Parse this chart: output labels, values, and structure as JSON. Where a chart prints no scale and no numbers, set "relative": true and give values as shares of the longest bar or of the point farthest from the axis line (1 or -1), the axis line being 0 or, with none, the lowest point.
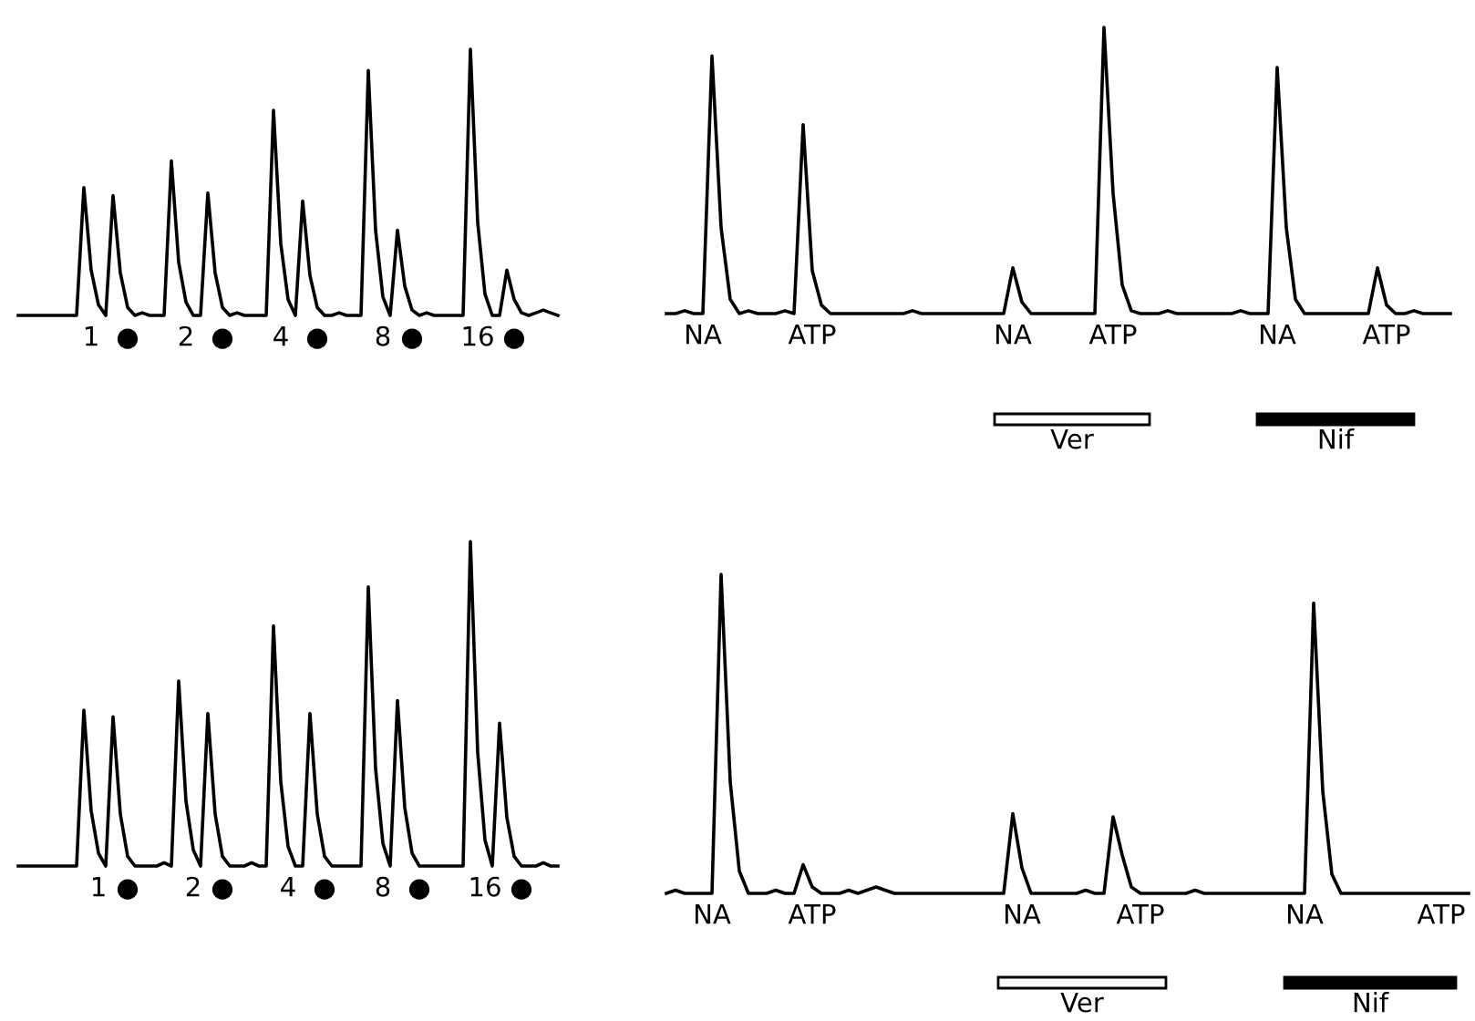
{
  "chart_data": [
    {
      "type": "line",
      "relative": true,
      "categories": [
        null,
        null,
        null,
        null,
        null,
        null,
        null,
        null,
        null,
        null,
        "1",
        null,
        null,
        null,
        null,
        "●",
        null,
        null,
        null,
        null,
        null,
        null,
        null,
        "2",
        null,
        null,
        null,
        null,
        "●",
        null,
        null,
        null,
        null,
        null,
        null,
        null,
        "4",
        null,
        null,
        null,
        null,
        "●",
        null,
        null,
        null,
        null,
        null,
        null,
        null,
        null,
        "8",
        null,
        null,
        null,
        "●",
        null,
        null,
        null,
        null,
        null,
        null,
        null,
        null,
        "16",
        null,
        null,
        null,
        null,
        "●",
        null,
        null,
        null,
        null,
        null,
        null
      ],
      "series": [
        {
          "color": "#000000",
          "values": [
            0,
            0,
            0,
            0,
            0,
            0,
            0,
            0,
            0,
            0.48,
            0.17,
            0.04,
            0,
            0.45,
            0.16,
            0.03,
            0,
            0.01,
            0,
            0,
            0,
            0.58,
            0.2,
            0.05,
            0,
            0,
            0.46,
            0.16,
            0.03,
            0,
            0.01,
            0,
            0,
            0,
            0,
            0.77,
            0.27,
            0.06,
            0,
            0.43,
            0.15,
            0.03,
            0,
            0,
            0.01,
            0,
            0,
            0,
            0.92,
            0.32,
            0.07,
            0,
            0.32,
            0.11,
            0.02,
            0,
            0.01,
            0,
            0,
            0,
            0,
            0,
            1,
            0.35,
            0.08,
            0,
            0,
            0.17,
            0.06,
            0.01,
            0,
            0.01,
            0.02,
            0.01,
            0
          ]
        }
      ]
    },
    {
      "type": "line",
      "relative": true,
      "categories": [
        null,
        null,
        null,
        null,
        "NA",
        null,
        null,
        null,
        null,
        null,
        null,
        null,
        null,
        null,
        null,
        null,
        "ATP",
        null,
        null,
        null,
        null,
        null,
        null,
        null,
        null,
        null,
        null,
        null,
        null,
        null,
        null,
        null,
        null,
        null,
        null,
        null,
        null,
        null,
        "NA",
        null,
        null,
        null,
        null,
        null,
        null,
        null,
        null,
        null,
        null,
        "ATP",
        null,
        null,
        null,
        null,
        null,
        null,
        null,
        null,
        null,
        null,
        null,
        null,
        null,
        null,
        null,
        null,
        null,
        "NA",
        null,
        null,
        null,
        null,
        null,
        null,
        null,
        null,
        null,
        null,
        null,
        "ATP",
        null,
        null,
        null,
        null,
        null,
        null,
        null
      ],
      "series": [
        {
          "color": "#000000",
          "values": [
            0,
            0,
            0.01,
            0,
            0,
            0.9,
            0.3,
            0.05,
            0,
            0.01,
            0,
            0,
            0,
            0.01,
            0,
            0.66,
            0.15,
            0.03,
            0,
            0,
            0,
            0,
            0,
            0,
            0,
            0,
            0,
            0.01,
            0,
            0,
            0,
            0,
            0,
            0,
            0,
            0,
            0,
            0,
            0.16,
            0.04,
            0,
            0,
            0,
            0,
            0,
            0,
            0,
            0,
            1,
            0.42,
            0.1,
            0.01,
            0,
            0,
            0,
            0.01,
            0,
            0,
            0,
            0,
            0,
            0,
            0,
            0.01,
            0,
            0,
            0,
            0.86,
            0.3,
            0.05,
            0,
            0,
            0,
            0,
            0,
            0,
            0,
            0,
            0.16,
            0.03,
            0,
            0,
            0.01,
            0,
            0,
            0,
            0
          ]
        }
      ],
      "annotations": [
        "Ver",
        "Nif"
      ]
    },
    {
      "type": "line",
      "relative": true,
      "categories": [
        null,
        null,
        null,
        null,
        null,
        null,
        null,
        null,
        null,
        null,
        null,
        "1",
        null,
        null,
        null,
        "●",
        null,
        null,
        null,
        null,
        null,
        null,
        null,
        null,
        "2",
        null,
        null,
        null,
        "●",
        null,
        null,
        null,
        null,
        null,
        null,
        null,
        null,
        "4",
        null,
        null,
        null,
        null,
        "●",
        null,
        null,
        null,
        null,
        null,
        null,
        null,
        "8",
        null,
        null,
        null,
        null,
        "●",
        null,
        null,
        null,
        null,
        null,
        null,
        null,
        null,
        "16",
        null,
        null,
        null,
        null,
        "●",
        null,
        null,
        null,
        null,
        null
      ],
      "series": [
        {
          "color": "#000000",
          "values": [
            0,
            0,
            0,
            0,
            0,
            0,
            0,
            0,
            0,
            0.48,
            0.17,
            0.04,
            0,
            0.46,
            0.16,
            0.03,
            0,
            0,
            0,
            0,
            0.01,
            0,
            0.57,
            0.2,
            0.05,
            0,
            0.47,
            0.16,
            0.03,
            0,
            0,
            0,
            0.01,
            0,
            0,
            0.74,
            0.26,
            0.06,
            0,
            0,
            0.47,
            0.16,
            0.03,
            0,
            0,
            0,
            0,
            0,
            0.86,
            0.3,
            0.07,
            0,
            0.51,
            0.18,
            0.04,
            0,
            0,
            0,
            0,
            0,
            0,
            0,
            1,
            0.35,
            0.08,
            0,
            0.44,
            0.15,
            0.03,
            0,
            0,
            0,
            0.01,
            0,
            0
          ]
        }
      ]
    },
    {
      "type": "line",
      "relative": true,
      "categories": [
        null,
        null,
        null,
        null,
        null,
        "NA",
        null,
        null,
        null,
        null,
        null,
        null,
        null,
        null,
        null,
        null,
        "ATP",
        null,
        null,
        null,
        null,
        null,
        null,
        null,
        null,
        null,
        null,
        null,
        null,
        null,
        null,
        null,
        null,
        null,
        null,
        null,
        null,
        null,
        null,
        "NA",
        null,
        null,
        null,
        null,
        null,
        null,
        null,
        null,
        null,
        null,
        null,
        null,
        "ATP",
        null,
        null,
        null,
        null,
        null,
        null,
        null,
        null,
        null,
        null,
        null,
        null,
        null,
        null,
        null,
        null,
        null,
        "NA",
        null,
        null,
        null,
        null,
        null,
        null,
        null,
        null,
        null,
        null,
        null,
        null,
        null,
        null,
        "ATP",
        null,
        null,
        null
      ],
      "series": [
        {
          "color": "#000000",
          "values": [
            0,
            0.01,
            0,
            0,
            0,
            0,
            1,
            0.35,
            0.07,
            0,
            0,
            0,
            0.01,
            0,
            0,
            0.09,
            0.02,
            0,
            0,
            0,
            0.01,
            0,
            0.01,
            0.02,
            0.01,
            0,
            0,
            0,
            0,
            0,
            0,
            0,
            0,
            0,
            0,
            0,
            0,
            0,
            0.25,
            0.08,
            0,
            0,
            0,
            0,
            0,
            0,
            0.01,
            0,
            0,
            0.24,
            0.12,
            0.02,
            0,
            0,
            0,
            0,
            0,
            0,
            0.01,
            0,
            0,
            0,
            0,
            0,
            0,
            0,
            0,
            0,
            0,
            0,
            0,
            0.91,
            0.32,
            0.06,
            0,
            0,
            0,
            0,
            0,
            0,
            0,
            0,
            0,
            0,
            0,
            0,
            0,
            0,
            0
          ]
        }
      ],
      "annotations": [
        "Ver",
        "Nif"
      ]
    }
  ]
}
